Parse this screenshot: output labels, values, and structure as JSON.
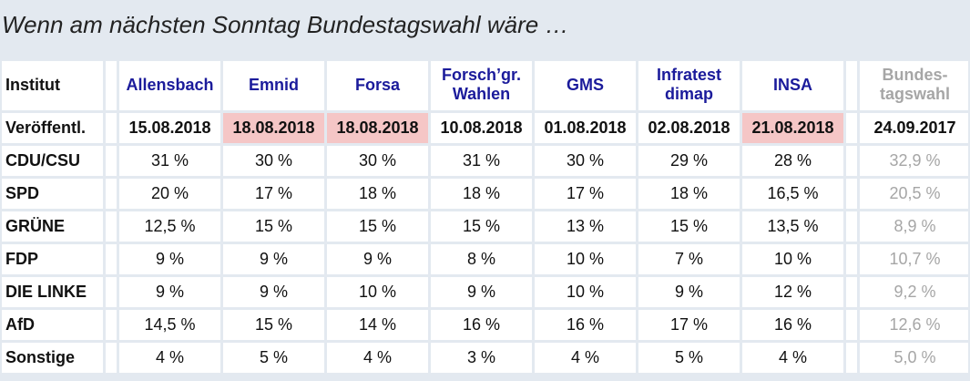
{
  "title": "Wenn am nächsten Sonntag Bundestagswahl wäre …",
  "table": {
    "institut_label": "Institut",
    "date_label": "Veröffentl.",
    "columns": [
      {
        "line1": "Allensbach",
        "line2": "",
        "date": "15.08.2018",
        "highlight": false
      },
      {
        "line1": "Emnid",
        "line2": "",
        "date": "18.08.2018",
        "highlight": true
      },
      {
        "line1": "Forsa",
        "line2": "",
        "date": "18.08.2018",
        "highlight": true
      },
      {
        "line1": "Forsch’gr.",
        "line2": "Wahlen",
        "date": "10.08.2018",
        "highlight": false
      },
      {
        "line1": "GMS",
        "line2": "",
        "date": "01.08.2018",
        "highlight": false
      },
      {
        "line1": "Infratest",
        "line2": "dimap",
        "date": "02.08.2018",
        "highlight": false
      },
      {
        "line1": "INSA",
        "line2": "",
        "date": "21.08.2018",
        "highlight": true
      },
      {
        "line1": "Bundes-",
        "line2": "tagswahl",
        "date": "24.09.2017",
        "highlight": false
      }
    ],
    "rows": [
      {
        "party": "CDU/CSU",
        "values": [
          "31 %",
          "30 %",
          "30 %",
          "31 %",
          "30 %",
          "29 %",
          "28 %",
          "32,9 %"
        ]
      },
      {
        "party": "SPD",
        "values": [
          "20 %",
          "17 %",
          "18 %",
          "18 %",
          "17 %",
          "18 %",
          "16,5 %",
          "20,5 %"
        ]
      },
      {
        "party": "GRÜNE",
        "values": [
          "12,5 %",
          "15 %",
          "15 %",
          "15 %",
          "13 %",
          "15 %",
          "13,5 %",
          "8,9 %"
        ]
      },
      {
        "party": "FDP",
        "values": [
          "9 %",
          "9 %",
          "9 %",
          "8 %",
          "10 %",
          "7 %",
          "10 %",
          "10,7 %"
        ]
      },
      {
        "party": "DIE LINKE",
        "values": [
          "9 %",
          "9 %",
          "10 %",
          "9 %",
          "10 %",
          "9 %",
          "12 %",
          "9,2 %"
        ]
      },
      {
        "party": "AfD",
        "values": [
          "14,5 %",
          "15 %",
          "14 %",
          "16 %",
          "16 %",
          "17 %",
          "16 %",
          "12,6 %"
        ]
      },
      {
        "party": "Sonstige",
        "values": [
          "4 %",
          "5 %",
          "4 %",
          "3 %",
          "4 %",
          "5 %",
          "4 %",
          "5,0 %"
        ]
      }
    ]
  },
  "colors": {
    "background": "#e3e9f0",
    "cell": "#ffffff",
    "highlight": "#f5c6c6",
    "institute_text": "#1b1b9b",
    "reference_text": "#a6a6a6"
  }
}
